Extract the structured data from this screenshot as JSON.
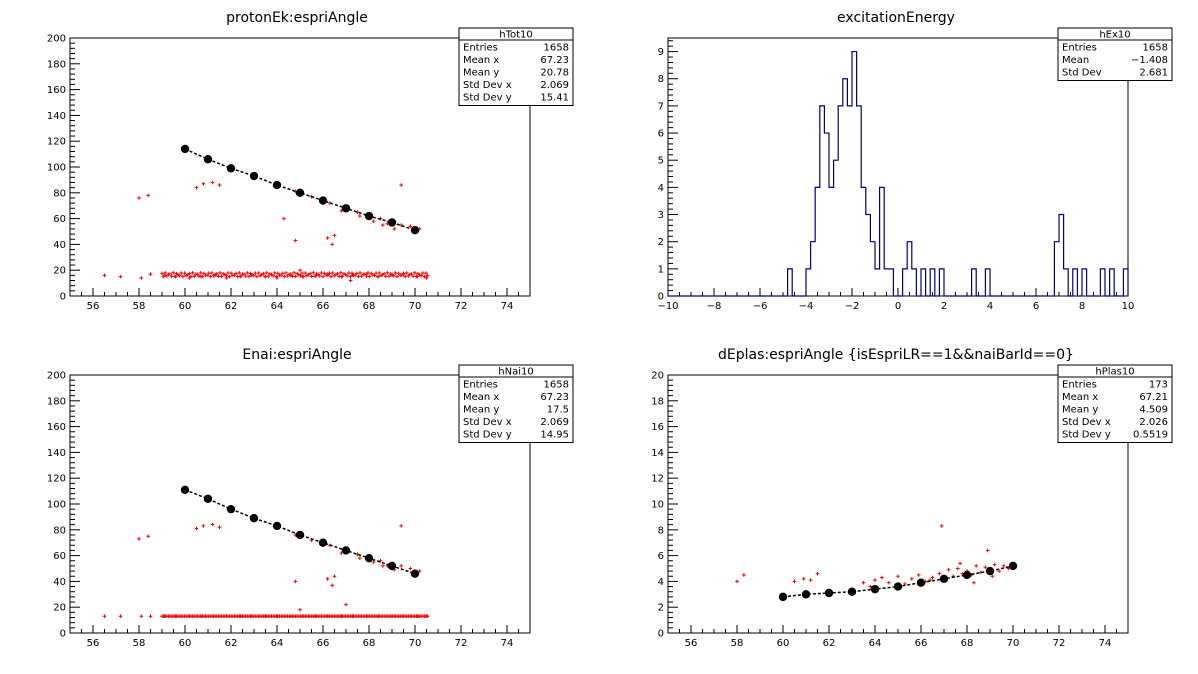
{
  "chart_data": [
    {
      "type": "scatter",
      "title": "protonEk:espriAngle",
      "xlim": [
        55,
        75
      ],
      "ylim": [
        0,
        200
      ],
      "x_ticks": [
        56,
        58,
        60,
        62,
        64,
        66,
        68,
        70,
        72,
        74
      ],
      "y_ticks": [
        0,
        20,
        40,
        60,
        80,
        100,
        120,
        140,
        160,
        180,
        200
      ],
      "stats": {
        "name": "hTot10",
        "rows": [
          {
            "label": "Entries",
            "value": "1658"
          },
          {
            "label": "Mean x",
            "value": "67.23"
          },
          {
            "label": "Mean y",
            "value": "20.78"
          },
          {
            "label": "Std Dev x",
            "value": "2.069"
          },
          {
            "label": "Std Dev y",
            "value": "15.41"
          }
        ]
      },
      "series": [
        {
          "kind": "markers",
          "color": "#000000",
          "x": [
            60,
            61,
            62,
            63,
            64,
            65,
            66,
            67,
            68,
            69,
            70
          ],
          "y": [
            114,
            106,
            99,
            93,
            86,
            80,
            74,
            68,
            62,
            57,
            51
          ]
        },
        {
          "kind": "points",
          "color": "#ff0000",
          "x": [
            56.5,
            57.2,
            58.1,
            58.5,
            59.1,
            59.6,
            60.2,
            60.7,
            61.3,
            61.8,
            62.4,
            62.9,
            63.5,
            64.0,
            64.6,
            65.1,
            65.7,
            66.2,
            66.8,
            67.3,
            67.9,
            68.4,
            69.0,
            69.5,
            70.1,
            70.5,
            64.8,
            65.5,
            66.3,
            67.0,
            67.5,
            68.0,
            68.5,
            69.0,
            69.4,
            69.8,
            70.2,
            66.0,
            66.8,
            67.6,
            68.2,
            68.8,
            58.0,
            58.4,
            60.5,
            60.8,
            61.2,
            61.5,
            64.8,
            66.5,
            69.4,
            65.0,
            67.2,
            68.6,
            69.1,
            66.2,
            66.4,
            64.3
          ],
          "y": [
            16,
            15,
            14,
            17,
            16,
            15,
            14,
            15,
            16,
            14,
            15,
            16,
            15,
            14,
            16,
            15,
            16,
            17,
            15,
            16,
            17,
            15,
            16,
            17,
            15,
            14,
            81,
            77,
            72,
            67,
            65,
            61,
            60,
            58,
            55,
            54,
            52,
            72,
            66,
            62,
            58,
            56,
            76,
            78,
            84,
            87,
            88,
            86,
            43,
            47,
            86,
            20,
            12,
            55,
            52,
            45,
            40,
            60
          ]
        }
      ]
    },
    {
      "type": "histogram",
      "title": "excitationEnergy",
      "xlim": [
        -10,
        10
      ],
      "ylim": [
        0,
        9.5
      ],
      "x_ticks": [
        -10,
        -8,
        -6,
        -4,
        -2,
        0,
        2,
        4,
        6,
        8,
        10
      ],
      "y_ticks": [
        0,
        1,
        2,
        3,
        4,
        5,
        6,
        7,
        8,
        9
      ],
      "stats": {
        "name": "hEx10",
        "rows": [
          {
            "label": "Entries",
            "value": "1658"
          },
          {
            "label": "Mean",
            "value": "−1.408"
          },
          {
            "label": "Std Dev",
            "value": "2.681"
          }
        ]
      },
      "color": "#000080",
      "bin_width": 0.2,
      "bins": [
        {
          "x": -4.8,
          "y": 1
        },
        {
          "x": -4.0,
          "y": 1
        },
        {
          "x": -3.8,
          "y": 2
        },
        {
          "x": -3.6,
          "y": 4
        },
        {
          "x": -3.4,
          "y": 7
        },
        {
          "x": -3.2,
          "y": 6
        },
        {
          "x": -3.0,
          "y": 4
        },
        {
          "x": -2.8,
          "y": 5
        },
        {
          "x": -2.6,
          "y": 7
        },
        {
          "x": -2.4,
          "y": 8
        },
        {
          "x": -2.2,
          "y": 7
        },
        {
          "x": -2.0,
          "y": 9
        },
        {
          "x": -1.8,
          "y": 7
        },
        {
          "x": -1.6,
          "y": 4
        },
        {
          "x": -1.4,
          "y": 3
        },
        {
          "x": -1.2,
          "y": 2
        },
        {
          "x": -1.0,
          "y": 1
        },
        {
          "x": -0.8,
          "y": 4
        },
        {
          "x": -0.6,
          "y": 1
        },
        {
          "x": -0.4,
          "y": 1
        },
        {
          "x": 0.2,
          "y": 1
        },
        {
          "x": 0.4,
          "y": 2
        },
        {
          "x": 0.6,
          "y": 1
        },
        {
          "x": 1.0,
          "y": 1
        },
        {
          "x": 1.4,
          "y": 1
        },
        {
          "x": 1.8,
          "y": 1
        },
        {
          "x": 3.2,
          "y": 1
        },
        {
          "x": 3.8,
          "y": 1
        },
        {
          "x": 6.8,
          "y": 2
        },
        {
          "x": 7.0,
          "y": 3
        },
        {
          "x": 7.2,
          "y": 1
        },
        {
          "x": 7.6,
          "y": 1
        },
        {
          "x": 8.0,
          "y": 1
        },
        {
          "x": 8.8,
          "y": 1
        },
        {
          "x": 9.2,
          "y": 1
        },
        {
          "x": 9.8,
          "y": 1
        }
      ]
    },
    {
      "type": "scatter",
      "title": "Enai:espriAngle",
      "xlim": [
        55,
        75
      ],
      "ylim": [
        0,
        200
      ],
      "x_ticks": [
        56,
        58,
        60,
        62,
        64,
        66,
        68,
        70,
        72,
        74
      ],
      "y_ticks": [
        0,
        20,
        40,
        60,
        80,
        100,
        120,
        140,
        160,
        180,
        200
      ],
      "stats": {
        "name": "hNai10",
        "rows": [
          {
            "label": "Entries",
            "value": "1658"
          },
          {
            "label": "Mean x",
            "value": "67.23"
          },
          {
            "label": "Mean y",
            "value": "17.5"
          },
          {
            "label": "Std Dev x",
            "value": "2.069"
          },
          {
            "label": "Std Dev y",
            "value": "14.95"
          }
        ]
      },
      "series": [
        {
          "kind": "markers",
          "color": "#000000",
          "x": [
            60,
            61,
            62,
            63,
            64,
            65,
            66,
            67,
            68,
            69,
            70
          ],
          "y": [
            111,
            104,
            96,
            89,
            83,
            76,
            70,
            64,
            58,
            52,
            46
          ]
        },
        {
          "kind": "points",
          "color": "#ff0000",
          "x": [
            56.5,
            57.2,
            58.1,
            58.5,
            59.1,
            59.6,
            60.2,
            60.7,
            61.3,
            61.8,
            62.4,
            62.9,
            63.5,
            64.0,
            64.6,
            65.1,
            65.7,
            66.2,
            66.8,
            67.3,
            67.9,
            68.4,
            69.0,
            69.5,
            70.1,
            70.5,
            64.8,
            65.5,
            66.3,
            67.0,
            67.5,
            68.0,
            68.5,
            69.0,
            69.4,
            69.8,
            70.2,
            66.0,
            66.8,
            67.6,
            68.2,
            68.8,
            58.0,
            58.4,
            60.5,
            60.8,
            61.2,
            61.5,
            64.8,
            66.5,
            69.4,
            65.0,
            67.0,
            68.6,
            69.1,
            66.2,
            66.4
          ],
          "y": [
            13,
            13,
            13,
            13,
            13,
            13,
            13,
            13,
            13,
            13,
            13,
            13,
            13,
            13,
            13,
            13,
            13,
            13,
            13,
            13,
            13,
            13,
            13,
            13,
            13,
            13,
            76,
            72,
            68,
            63,
            61,
            58,
            56,
            54,
            52,
            50,
            48,
            68,
            62,
            58,
            55,
            52,
            73,
            75,
            81,
            83,
            84,
            82,
            40,
            44,
            83,
            18,
            22,
            52,
            49,
            42,
            37
          ]
        }
      ]
    },
    {
      "type": "scatter",
      "title": "dEplas:espriAngle {isEspriLR==1&&naiBarId==0}",
      "xlim": [
        55,
        75
      ],
      "ylim": [
        0,
        20
      ],
      "x_ticks": [
        56,
        58,
        60,
        62,
        64,
        66,
        68,
        70,
        72,
        74
      ],
      "y_ticks": [
        0,
        2,
        4,
        6,
        8,
        10,
        12,
        14,
        16,
        18,
        20
      ],
      "stats": {
        "name": "hPlas10",
        "rows": [
          {
            "label": "Entries",
            "value": "173"
          },
          {
            "label": "Mean x",
            "value": "67.21"
          },
          {
            "label": "Mean y",
            "value": "4.509"
          },
          {
            "label": "Std Dev x",
            "value": "2.026"
          },
          {
            "label": "Std Dev y",
            "value": "0.5519"
          }
        ]
      },
      "series": [
        {
          "kind": "markers",
          "color": "#000000",
          "x": [
            60,
            61,
            62,
            63,
            64,
            65,
            66,
            67,
            68,
            69,
            70
          ],
          "y": [
            2.8,
            3.0,
            3.1,
            3.2,
            3.4,
            3.6,
            3.9,
            4.2,
            4.5,
            4.8,
            5.2
          ],
          "fit": [
            2.8,
            5.2
          ]
        },
        {
          "kind": "points",
          "color": "#ff0000",
          "x": [
            58.0,
            58.3,
            60.5,
            60.9,
            61.2,
            61.5,
            63.5,
            64.0,
            64.3,
            64.6,
            65.0,
            65.3,
            65.6,
            65.9,
            66.2,
            66.5,
            66.8,
            67.0,
            67.2,
            67.4,
            67.6,
            67.8,
            68.0,
            68.2,
            68.4,
            68.6,
            68.8,
            69.0,
            69.2,
            69.4,
            69.6,
            69.8,
            66.9,
            68.9,
            63.8,
            64.9,
            66.4,
            67.7,
            68.3,
            69.1
          ],
          "y": [
            4.0,
            4.5,
            4.0,
            4.2,
            4.1,
            4.6,
            3.9,
            4.1,
            4.3,
            3.9,
            4.4,
            3.8,
            4.2,
            4.5,
            4.0,
            4.3,
            4.6,
            4.2,
            4.9,
            4.4,
            5.0,
            4.6,
            4.8,
            4.5,
            5.2,
            4.7,
            5.1,
            4.9,
            5.3,
            4.8,
            5.2,
            5.0,
            8.3,
            6.4,
            3.6,
            3.5,
            4.1,
            5.4,
            3.9,
            4.4
          ]
        }
      ]
    }
  ]
}
